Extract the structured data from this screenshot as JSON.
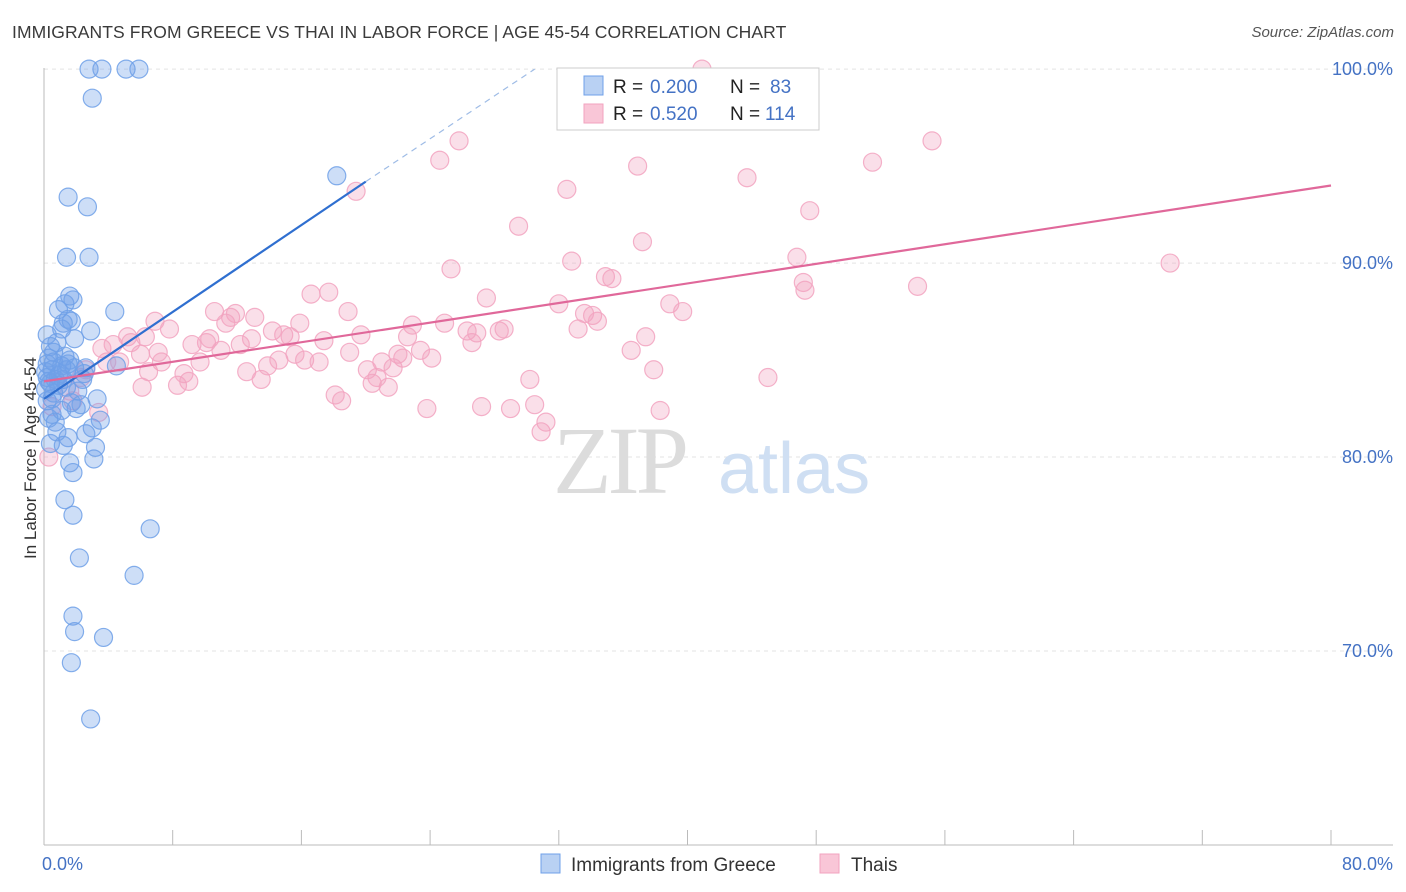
{
  "title": "IMMIGRANTS FROM GREECE VS THAI IN LABOR FORCE | AGE 45-54 CORRELATION CHART",
  "source": "Source: ZipAtlas.com",
  "watermark": {
    "zip": "ZIP",
    "atlas": "atlas"
  },
  "legend": {
    "rows": [
      {
        "r_label": "R =",
        "r_value": "0.200",
        "n_label": "N =",
        "n_value": "83"
      },
      {
        "r_label": "R =",
        "r_value": "0.520",
        "n_label": "N =",
        "n_value": "114"
      }
    ]
  },
  "chart_data": {
    "type": "scatter",
    "title": "IMMIGRANTS FROM GREECE VS THAI IN LABOR FORCE | AGE 45-54 CORRELATION CHART",
    "xlabel": "",
    "ylabel": "In Labor Force | Age 45-54",
    "xlim": [
      0,
      80
    ],
    "ylim": [
      60,
      101.5
    ],
    "x_tick_labels": [
      "0.0%",
      "80.0%"
    ],
    "y_ticks": [
      70,
      80,
      90,
      100
    ],
    "y_tick_labels": [
      "70.0%",
      "80.0%",
      "90.0%",
      "100.0%"
    ],
    "grid": true,
    "colors": {
      "greece": "#6fa0e8",
      "greece_line": "#2f6fd0",
      "thai": "#f2a3bf",
      "thai_line": "#e0689a"
    },
    "series": [
      {
        "name": "Immigrants from Greece",
        "R": 0.2,
        "N": 83,
        "trend": {
          "x0": 0,
          "y0": 83.0,
          "x1": 20.0,
          "y1": 94.2,
          "dash_to_x": 30.5,
          "dash_to_y": 100.0
        },
        "points": [
          [
            2.8,
            100
          ],
          [
            3.6,
            100
          ],
          [
            5.1,
            100
          ],
          [
            5.9,
            100
          ],
          [
            3.0,
            98.5
          ],
          [
            18.2,
            94.5
          ],
          [
            1.5,
            93.4
          ],
          [
            2.7,
            92.9
          ],
          [
            1.4,
            90.3
          ],
          [
            2.8,
            90.3
          ],
          [
            1.6,
            88.3
          ],
          [
            1.8,
            88.1
          ],
          [
            1.3,
            87.9
          ],
          [
            0.9,
            87.6
          ],
          [
            4.4,
            87.5
          ],
          [
            1.5,
            87.1
          ],
          [
            1.2,
            86.9
          ],
          [
            1.7,
            87.0
          ],
          [
            1.1,
            86.6
          ],
          [
            2.9,
            86.5
          ],
          [
            0.4,
            85.7
          ],
          [
            0.8,
            85.9
          ],
          [
            0.3,
            85.1
          ],
          [
            1.3,
            85.2
          ],
          [
            0.2,
            84.8
          ],
          [
            0.6,
            84.9
          ],
          [
            1.1,
            84.7
          ],
          [
            1.5,
            84.8
          ],
          [
            0.1,
            84.4
          ],
          [
            0.5,
            84.5
          ],
          [
            1.0,
            84.3
          ],
          [
            1.9,
            84.6
          ],
          [
            2.6,
            84.6
          ],
          [
            4.5,
            84.7
          ],
          [
            0.2,
            84.1
          ],
          [
            0.7,
            84.0
          ],
          [
            1.2,
            84.0
          ],
          [
            0.4,
            83.8
          ],
          [
            0.9,
            83.7
          ],
          [
            1.4,
            83.6
          ],
          [
            0.1,
            83.5
          ],
          [
            2.5,
            84.3
          ],
          [
            0.6,
            83.3
          ],
          [
            3.3,
            83.0
          ],
          [
            0.2,
            82.9
          ],
          [
            1.7,
            82.8
          ],
          [
            2.3,
            82.7
          ],
          [
            0.5,
            82.2
          ],
          [
            2.0,
            82.5
          ],
          [
            3.5,
            81.9
          ],
          [
            0.3,
            82.0
          ],
          [
            3.0,
            81.5
          ],
          [
            0.8,
            81.3
          ],
          [
            1.5,
            81.0
          ],
          [
            2.6,
            81.2
          ],
          [
            0.4,
            80.7
          ],
          [
            1.2,
            80.6
          ],
          [
            3.2,
            80.5
          ],
          [
            3.1,
            79.9
          ],
          [
            1.6,
            79.7
          ],
          [
            1.8,
            79.2
          ],
          [
            1.3,
            77.8
          ],
          [
            1.8,
            77.0
          ],
          [
            6.6,
            76.3
          ],
          [
            2.2,
            74.8
          ],
          [
            5.6,
            73.9
          ],
          [
            1.8,
            71.8
          ],
          [
            1.9,
            71.0
          ],
          [
            3.7,
            70.7
          ],
          [
            1.7,
            69.4
          ],
          [
            2.9,
            66.5
          ],
          [
            0.3,
            83.9
          ],
          [
            0.9,
            84.2
          ],
          [
            1.4,
            84.5
          ],
          [
            0.6,
            85.4
          ],
          [
            2.1,
            83.4
          ],
          [
            1.1,
            82.4
          ],
          [
            0.7,
            81.8
          ],
          [
            2.4,
            84.0
          ],
          [
            1.9,
            86.1
          ],
          [
            0.5,
            83.0
          ],
          [
            1.6,
            85.0
          ],
          [
            0.2,
            86.3
          ]
        ]
      },
      {
        "name": "Thais",
        "R": 0.52,
        "N": 114,
        "trend": {
          "x0": 0,
          "y0": 83.9,
          "x1": 80,
          "y1": 94.0
        },
        "points": [
          [
            0.3,
            80.0
          ],
          [
            0.5,
            82.6
          ],
          [
            1.8,
            82.9
          ],
          [
            1.6,
            83.4
          ],
          [
            2.3,
            84.1
          ],
          [
            2.6,
            84.5
          ],
          [
            3.4,
            82.3
          ],
          [
            3.6,
            85.6
          ],
          [
            4.3,
            85.8
          ],
          [
            4.7,
            84.9
          ],
          [
            5.2,
            86.2
          ],
          [
            5.4,
            85.9
          ],
          [
            6.0,
            85.3
          ],
          [
            6.3,
            86.2
          ],
          [
            6.5,
            84.4
          ],
          [
            6.9,
            87.0
          ],
          [
            7.1,
            85.4
          ],
          [
            7.3,
            84.9
          ],
          [
            7.8,
            86.6
          ],
          [
            8.3,
            83.7
          ],
          [
            8.7,
            84.3
          ],
          [
            9.2,
            85.8
          ],
          [
            9.7,
            84.9
          ],
          [
            10.1,
            85.9
          ],
          [
            10.3,
            86.1
          ],
          [
            10.6,
            87.5
          ],
          [
            11.0,
            85.5
          ],
          [
            11.3,
            86.9
          ],
          [
            11.6,
            87.2
          ],
          [
            11.9,
            87.4
          ],
          [
            12.2,
            85.8
          ],
          [
            12.6,
            84.4
          ],
          [
            13.1,
            87.2
          ],
          [
            13.5,
            84.0
          ],
          [
            13.9,
            84.7
          ],
          [
            14.2,
            86.5
          ],
          [
            14.6,
            85.0
          ],
          [
            14.9,
            86.3
          ],
          [
            15.3,
            86.2
          ],
          [
            15.6,
            85.3
          ],
          [
            15.9,
            86.9
          ],
          [
            16.2,
            85.0
          ],
          [
            16.6,
            88.4
          ],
          [
            17.1,
            84.9
          ],
          [
            17.7,
            88.5
          ],
          [
            17.4,
            86.0
          ],
          [
            18.1,
            83.2
          ],
          [
            18.5,
            82.9
          ],
          [
            18.9,
            87.5
          ],
          [
            19.4,
            93.7
          ],
          [
            19.7,
            86.3
          ],
          [
            20.1,
            84.5
          ],
          [
            20.4,
            83.8
          ],
          [
            20.7,
            84.1
          ],
          [
            21.0,
            84.9
          ],
          [
            21.4,
            83.6
          ],
          [
            21.7,
            84.6
          ],
          [
            22.0,
            85.3
          ],
          [
            22.3,
            85.1
          ],
          [
            22.6,
            86.2
          ],
          [
            22.9,
            86.8
          ],
          [
            23.4,
            85.5
          ],
          [
            23.8,
            82.5
          ],
          [
            24.1,
            85.1
          ],
          [
            24.6,
            95.3
          ],
          [
            24.9,
            86.9
          ],
          [
            25.3,
            89.7
          ],
          [
            25.8,
            96.3
          ],
          [
            26.3,
            86.5
          ],
          [
            26.6,
            85.9
          ],
          [
            27.2,
            82.6
          ],
          [
            27.5,
            88.2
          ],
          [
            28.3,
            86.5
          ],
          [
            28.6,
            86.6
          ],
          [
            29.0,
            82.5
          ],
          [
            29.5,
            91.9
          ],
          [
            30.2,
            84.0
          ],
          [
            30.5,
            82.7
          ],
          [
            30.9,
            81.3
          ],
          [
            31.2,
            81.8
          ],
          [
            32.0,
            87.9
          ],
          [
            32.5,
            93.8
          ],
          [
            32.8,
            90.1
          ],
          [
            33.2,
            86.6
          ],
          [
            33.6,
            87.4
          ],
          [
            34.1,
            87.3
          ],
          [
            34.4,
            87.0
          ],
          [
            34.9,
            89.3
          ],
          [
            35.3,
            89.2
          ],
          [
            36.5,
            85.5
          ],
          [
            36.9,
            95.0
          ],
          [
            37.2,
            91.1
          ],
          [
            37.4,
            86.2
          ],
          [
            37.9,
            84.5
          ],
          [
            38.3,
            82.4
          ],
          [
            38.9,
            87.9
          ],
          [
            39.7,
            87.5
          ],
          [
            40.9,
            100
          ],
          [
            43.7,
            94.4
          ],
          [
            45.0,
            84.1
          ],
          [
            46.8,
            90.3
          ],
          [
            47.2,
            89.0
          ],
          [
            47.3,
            88.6
          ],
          [
            47.6,
            92.7
          ],
          [
            51.5,
            95.2
          ],
          [
            54.3,
            88.8
          ],
          [
            55.2,
            96.3
          ],
          [
            70.0,
            90.0
          ],
          [
            6.1,
            83.6
          ],
          [
            9.0,
            83.9
          ],
          [
            12.9,
            86.1
          ],
          [
            26.9,
            86.4
          ],
          [
            19.0,
            85.4
          ],
          [
            3.9,
            84.9
          ]
        ]
      }
    ]
  }
}
